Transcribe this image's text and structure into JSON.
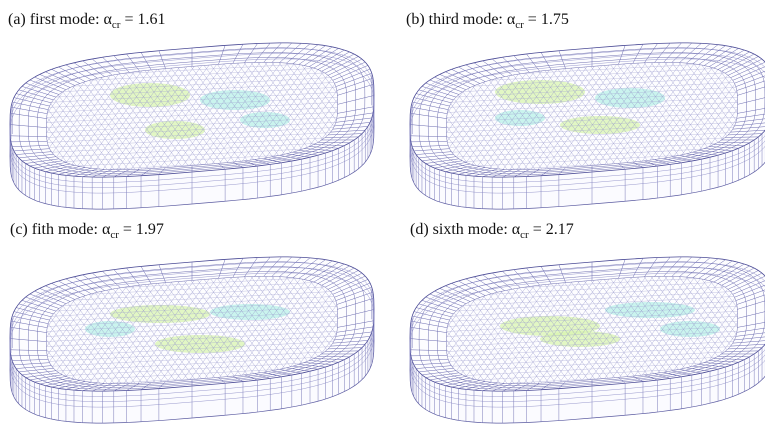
{
  "panels": [
    {
      "label": "(a)",
      "text": "first mode: α",
      "subscript": "cr",
      "value": "= 1.61"
    },
    {
      "label": "(b)",
      "text": "third mode: α",
      "subscript": "cr",
      "value": "= 1.75"
    },
    {
      "label": "(c)",
      "text": "fith mode: α",
      "subscript": "cr",
      "value": "= 1.97"
    },
    {
      "label": "(d)",
      "text": "sixth mode: α",
      "subscript": "cr",
      "value": "= 2.17"
    }
  ]
}
